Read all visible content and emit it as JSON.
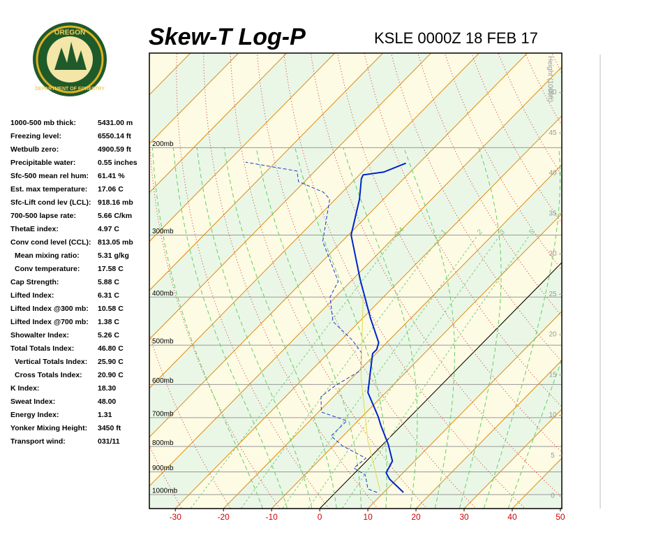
{
  "header": {
    "title": "Skew-T Log-P",
    "station": "KSLE 0000Z 18 FEB 17",
    "logo_top": "OREGON",
    "logo_bottom": "DEPARTMENT OF FORESTRY"
  },
  "indices": [
    {
      "label": "1000-500 mb thick:",
      "value": "5431.00 m"
    },
    {
      "label": "Freezing level:",
      "value": "6550.14 ft"
    },
    {
      "label": "Wetbulb zero:",
      "value": "4900.59 ft"
    },
    {
      "label": "Precipitable water:",
      "value": "0.55 inches"
    },
    {
      "label": "Sfc-500 mean rel hum:",
      "value": "61.41 %"
    },
    {
      "label": "Est. max temperature:",
      "value": "17.06 C"
    },
    {
      "label": "Sfc-Lift cond lev (LCL):",
      "value": "918.16 mb"
    },
    {
      "label": "700-500 lapse rate:",
      "value": "5.66 C/km"
    },
    {
      "label": "ThetaE index:",
      "value": "4.97 C"
    },
    {
      "label": "Conv cond level (CCL):",
      "value": "813.05 mb"
    },
    {
      "label": "Mean mixing ratio:",
      "value": "5.31 g/kg",
      "indent": true
    },
    {
      "label": "Conv temperature:",
      "value": "17.58 C",
      "indent": true
    },
    {
      "label": "Cap Strength:",
      "value": "5.88 C"
    },
    {
      "label": "Lifted Index:",
      "value": "6.31 C"
    },
    {
      "label": "Lifted Index @300 mb:",
      "value": "10.58 C"
    },
    {
      "label": "Lifted Index @700 mb:",
      "value": "1.38 C"
    },
    {
      "label": "Showalter Index:",
      "value": "5.26 C"
    },
    {
      "label": "Total Totals Index:",
      "value": "46.80 C"
    },
    {
      "label": "Vertical Totals Index:",
      "value": "25.90 C",
      "indent": true
    },
    {
      "label": "Cross Totals Index:",
      "value": "20.90 C",
      "indent": true
    },
    {
      "label": "K Index:",
      "value": "18.30"
    },
    {
      "label": "Sweat Index:",
      "value": "48.00"
    },
    {
      "label": "Energy Index:",
      "value": "1.31"
    },
    {
      "label": "Yonker Mixing Height:",
      "value": "3450 ft"
    },
    {
      "label": "Transport wind:",
      "value": "031/11"
    }
  ],
  "chart_data": {
    "type": "skew-t",
    "xlim": [
      -35.4,
      50.3
    ],
    "xticks": [
      -30,
      -20,
      -10,
      0,
      10,
      20,
      30,
      40,
      50
    ],
    "ylim": [
      1067,
      129
    ],
    "ylog": true,
    "pressure_levels": [
      {
        "value": 200,
        "label": "200mb"
      },
      {
        "value": 300,
        "label": "300mb"
      },
      {
        "value": 400,
        "label": "400mb"
      },
      {
        "value": 500,
        "label": "500mb"
      },
      {
        "value": 600,
        "label": "600mb"
      },
      {
        "value": 700,
        "label": "700mb"
      },
      {
        "value": 800,
        "label": "800mb"
      },
      {
        "value": 900,
        "label": "900mb"
      },
      {
        "value": 1000,
        "label": "1000mb"
      }
    ],
    "y2_label": "Height (1000ft)",
    "y2lim": [
      -1.56,
      54.9
    ],
    "y2ticks": [
      0,
      5,
      10,
      15,
      20,
      25,
      30,
      35,
      40,
      45,
      50
    ],
    "mixing_ratios": [
      {
        "value": 0.4,
        "label": "0.4"
      },
      1,
      2,
      3,
      5
    ],
    "series": [
      {
        "color": "#0022cc",
        "pressure": [
          990,
          931,
          904,
          856,
          792,
          728,
          696,
          623,
          562,
          520,
          510,
          494,
          441,
          369,
          300,
          254,
          231,
          227,
          224,
          215
        ],
        "values": [
          14.1,
          8.5,
          6.5,
          5.4,
          1.1,
          -4.1,
          -6.7,
          -13.7,
          -17.7,
          -20.7,
          -20.7,
          -21.7,
          -28.4,
          -38.4,
          -49.4,
          -55.0,
          -58.8,
          -59.2,
          -55.5,
          -52.7
        ]
      },
      {
        "color": "#2233cc",
        "dashed": true,
        "pressure": [
          990,
          974,
          913,
          884,
          845,
          797,
          762,
          710,
          682,
          635,
          603,
          562,
          517,
          489,
          448,
          400,
          372,
          309,
          254,
          246,
          234,
          223,
          214
        ],
        "values": [
          8.6,
          6.0,
          2.6,
          -1.2,
          -0.7,
          -8.2,
          -12.5,
          -12.3,
          -19.4,
          -22.6,
          -21.9,
          -19.7,
          -23.3,
          -27.6,
          -35.5,
          -41.1,
          -42.6,
          -54.0,
          -61.2,
          -63.9,
          -71.3,
          -73.7,
          -86.2
        ]
      },
      {
        "color": "#e6d84a",
        "pressure": [
          984,
          777,
          580,
          393
        ],
        "values": [
          9.0,
          -4.0,
          -18.3,
          -35.0
        ]
      }
    ]
  }
}
